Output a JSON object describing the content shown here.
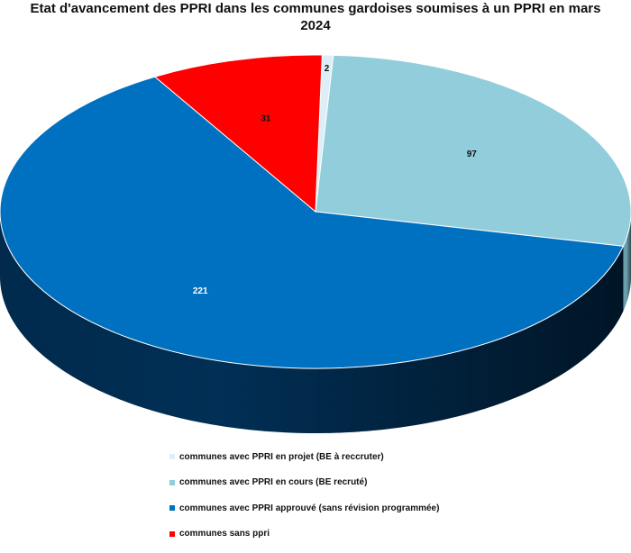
{
  "chart_data": {
    "type": "pie",
    "title": "Etat d'avancement des PPRI dans les communes gardoises soumises à un PPRI en mars 2024",
    "title_lines": [
      "Etat d'avancement des PPRI dans les communes gardoises soumises à un PPRI en mars",
      "2024"
    ],
    "legend_position": "bottom",
    "style": "3d",
    "categories": [
      "communes avec PPRI en projet (BE à reccruter)",
      "communes avec PPRI en cours (BE recruté)",
      "communes avec PPRI approuvé (sans révision programmée)",
      "communes sans ppri"
    ],
    "values": [
      2,
      97,
      221,
      31
    ],
    "data_labels": [
      "2",
      "97",
      "221",
      "31"
    ],
    "colors": [
      "#DDEEF6",
      "#92CDDC",
      "#0070C0",
      "#FF0000"
    ],
    "side_colors": [
      "#C5D8E1",
      "#6FA6B4",
      "#012F55",
      "#B80000"
    ]
  }
}
